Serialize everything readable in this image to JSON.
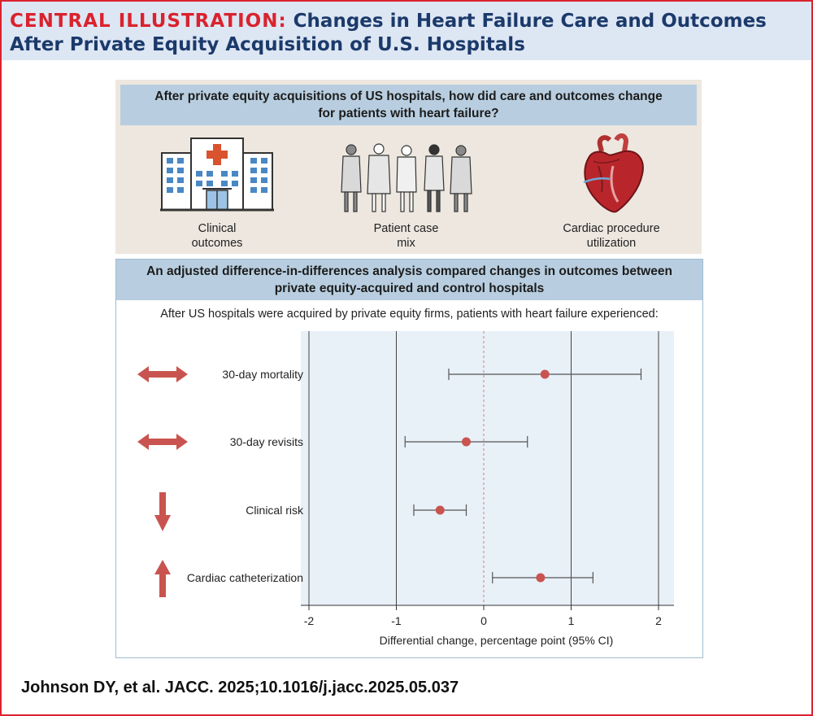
{
  "header": {
    "label": "CENTRAL ILLUSTRATION:",
    "title": "Changes in Heart Failure Care and Outcomes After Private Equity Acquisition of U.S. Hospitals"
  },
  "question": "After private equity acquisitions of US hospitals, how did care and outcomes change for patients with heart failure?",
  "icons": [
    {
      "label": "Clinical outcomes",
      "icon": "hospital-icon"
    },
    {
      "label": "Patient case mix",
      "icon": "patients-icon"
    },
    {
      "label": "Cardiac procedure utilization",
      "icon": "heart-icon"
    }
  ],
  "analysis": "An adjusted difference-in-differences analysis compared changes in outcomes between private equity-acquired and control hospitals",
  "chart_subtitle": "After US hospitals were acquired by private equity firms, patients with heart failure experienced:",
  "chart_data": {
    "type": "forest",
    "xlabel": "Differential change, percentage point (95% CI)",
    "xlim": [
      -2,
      2
    ],
    "xticks": [
      -2,
      -1,
      0,
      1,
      2
    ],
    "grid": true,
    "reference_line": 0,
    "rows": [
      {
        "label": "30-day mortality",
        "estimate": 0.7,
        "lower": -0.4,
        "upper": 1.8,
        "direction": "no change"
      },
      {
        "label": "30-day revisits",
        "estimate": -0.2,
        "lower": -0.9,
        "upper": 0.5,
        "direction": "no change"
      },
      {
        "label": "Clinical risk",
        "estimate": -0.5,
        "lower": -0.8,
        "upper": -0.2,
        "direction": "decrease"
      },
      {
        "label": "Cardiac catheterization",
        "estimate": 0.65,
        "lower": 0.1,
        "upper": 1.25,
        "direction": "increase"
      }
    ],
    "point_color": "#c9544f",
    "arrow_color": "#c9544f"
  },
  "citation": "Johnson DY, et al. JACC. 2025;10.1016/j.jacc.2025.05.037",
  "colors": {
    "accent_red": "#d9232e",
    "title_blue": "#1b3a6b",
    "header_bg": "#dde6f3",
    "bar_blue": "#b8cee0",
    "plot_bg": "#e8f0f8"
  }
}
